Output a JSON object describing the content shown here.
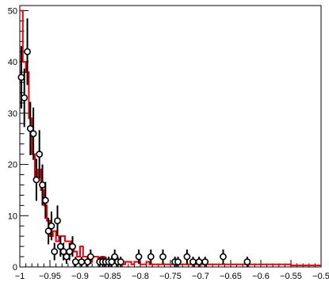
{
  "chart_data": {
    "type": "scatter",
    "title": "",
    "xlabel": "",
    "ylabel": "",
    "xlim": [
      -1,
      -0.5
    ],
    "ylim": [
      0,
      51
    ],
    "grid": false,
    "legend": "none",
    "xticks": [
      {
        "value": -1.0,
        "label": "−1"
      },
      {
        "value": -0.95,
        "label": "−0.95"
      },
      {
        "value": -0.9,
        "label": "−0.9"
      },
      {
        "value": -0.85,
        "label": "−0.85"
      },
      {
        "value": -0.8,
        "label": "−0.8"
      },
      {
        "value": -0.75,
        "label": "−0.75"
      },
      {
        "value": -0.7,
        "label": "−0.7"
      },
      {
        "value": -0.65,
        "label": "−0.65"
      },
      {
        "value": -0.6,
        "label": "−0.6"
      },
      {
        "value": -0.55,
        "label": "−0.55"
      },
      {
        "value": -0.5,
        "label": "−0.5"
      }
    ],
    "yticks": [
      {
        "value": 0,
        "label": "0"
      },
      {
        "value": 10,
        "label": "10"
      },
      {
        "value": 20,
        "label": "20"
      },
      {
        "value": 30,
        "label": "30"
      },
      {
        "value": 40,
        "label": "40"
      },
      {
        "value": 50,
        "label": "50"
      }
    ],
    "series": [
      {
        "style": "points-with-error-bars",
        "color": "#000000",
        "x": [
          -0.9975,
          -0.9925,
          -0.9875,
          -0.9825,
          -0.9775,
          -0.9725,
          -0.9675,
          -0.9625,
          -0.9575,
          -0.9525,
          -0.9475,
          -0.9425,
          -0.9375,
          -0.9325,
          -0.9275,
          -0.9225,
          -0.9175,
          -0.9125,
          -0.9075,
          -0.9025,
          -0.8975,
          -0.8925,
          -0.8875,
          -0.8825,
          -0.8775,
          -0.8725,
          -0.8675,
          -0.8625,
          -0.8575,
          -0.8525,
          -0.8475,
          -0.8425,
          -0.8375,
          -0.8325,
          -0.8275,
          -0.8225,
          -0.8175,
          -0.8125,
          -0.8075,
          -0.8025,
          -0.7975,
          -0.7925,
          -0.7875,
          -0.7825,
          -0.7775,
          -0.7725,
          -0.7675,
          -0.7625,
          -0.7575,
          -0.7525,
          -0.7475,
          -0.7425,
          -0.7375,
          -0.7325,
          -0.7275,
          -0.7225,
          -0.7175,
          -0.7125,
          -0.7075,
          -0.7025,
          -0.6975,
          -0.6925,
          -0.6875,
          -0.6825,
          -0.6775,
          -0.6725,
          -0.6675,
          -0.6625,
          -0.6575,
          -0.6525,
          -0.6475,
          -0.6425,
          -0.6375,
          -0.6325,
          -0.6275,
          -0.6225,
          -0.6175,
          -0.6125,
          -0.6075,
          -0.6025,
          -0.5975,
          -0.5925,
          -0.5875,
          -0.5825,
          -0.5775,
          -0.5725,
          -0.5675,
          -0.5625,
          -0.5575,
          -0.5525,
          -0.5475,
          -0.5425,
          -0.5375,
          -0.5325,
          -0.5275,
          -0.5225,
          -0.5175,
          -0.5125,
          -0.5075,
          -0.5025
        ],
        "y": [
          37,
          33,
          42,
          27,
          26,
          17,
          22,
          16,
          13,
          7,
          8,
          3,
          9,
          4,
          3,
          2,
          3,
          4,
          1,
          0,
          1,
          0,
          1,
          2,
          0,
          0,
          1,
          1,
          1,
          1,
          1,
          2,
          1,
          1,
          0,
          0,
          0,
          0,
          0,
          2,
          0,
          0,
          0,
          2,
          0,
          0,
          0,
          2,
          0,
          0,
          0,
          1,
          1,
          0,
          0,
          2,
          0,
          1,
          0,
          1,
          0,
          1,
          0,
          0,
          0,
          0,
          0,
          2,
          0,
          0,
          0,
          0,
          0,
          0,
          0,
          1,
          0,
          0,
          0,
          0,
          0,
          0,
          0,
          0,
          0,
          0,
          0,
          0,
          0,
          0,
          0,
          0,
          0,
          0,
          0,
          0,
          0,
          0,
          0,
          0
        ],
        "y_err": [
          6.1,
          5.7,
          6.5,
          5.2,
          5.1,
          4.1,
          4.7,
          4.0,
          3.6,
          2.6,
          2.8,
          1.7,
          3.0,
          2.0,
          1.7,
          1.4,
          1.7,
          2.0,
          1.0,
          0,
          1.0,
          0,
          1.0,
          1.4,
          0,
          0,
          1.0,
          1.0,
          1.0,
          1.0,
          1.0,
          1.4,
          1.0,
          1.0,
          0,
          0,
          0,
          0,
          0,
          1.4,
          0,
          0,
          0,
          1.4,
          0,
          0,
          0,
          1.4,
          0,
          0,
          0,
          1.0,
          1.0,
          0,
          0,
          1.4,
          0,
          1.0,
          0,
          1.0,
          0,
          1.0,
          0,
          0,
          0,
          0,
          0,
          1.4,
          0,
          0,
          0,
          0,
          0,
          0,
          0,
          1.0,
          0,
          0,
          0,
          0,
          0,
          0,
          0,
          0,
          0,
          0,
          0,
          0,
          0,
          0,
          0,
          0,
          0,
          0,
          0,
          0,
          0,
          0,
          0,
          0
        ]
      },
      {
        "style": "step-histogram",
        "color": "#e8000b",
        "bin_edges": [
          -1.0,
          -0.995,
          -0.99,
          -0.985,
          -0.98,
          -0.975,
          -0.97,
          -0.965,
          -0.96,
          -0.955,
          -0.95,
          -0.945,
          -0.94,
          -0.935,
          -0.93,
          -0.925,
          -0.92,
          -0.915,
          -0.91,
          -0.905,
          -0.9,
          -0.895,
          -0.89,
          -0.885,
          -0.88,
          -0.875,
          -0.87,
          -0.865,
          -0.86,
          -0.855,
          -0.85,
          -0.845,
          -0.84,
          -0.835,
          -0.83,
          -0.825,
          -0.82,
          -0.815,
          -0.81,
          -0.805,
          -0.8,
          -0.795,
          -0.79,
          -0.785,
          -0.78,
          -0.775,
          -0.77,
          -0.765,
          -0.76,
          -0.755,
          -0.75,
          -0.745,
          -0.74,
          -0.735,
          -0.73,
          -0.725,
          -0.72,
          -0.715,
          -0.71,
          -0.705,
          -0.7,
          -0.695,
          -0.69,
          -0.685,
          -0.68,
          -0.675,
          -0.67,
          -0.665,
          -0.66,
          -0.655,
          -0.65,
          -0.645,
          -0.64,
          -0.635,
          -0.63,
          -0.625,
          -0.62,
          -0.615,
          -0.61,
          -0.605,
          -0.6,
          -0.595,
          -0.59,
          -0.585,
          -0.58,
          -0.575,
          -0.57,
          -0.565,
          -0.56,
          -0.555,
          -0.55,
          -0.545,
          -0.54,
          -0.535,
          -0.53,
          -0.525,
          -0.52,
          -0.515,
          -0.51,
          -0.505,
          -0.5
        ],
        "values": [
          50,
          40,
          38,
          29,
          22,
          17,
          19,
          15,
          12,
          9,
          6,
          7,
          5,
          6,
          6,
          5,
          5,
          4,
          3,
          2,
          4,
          2,
          2,
          1,
          2,
          2,
          1,
          2,
          1,
          1,
          1,
          1,
          1,
          1,
          0.5,
          1,
          1,
          0.5,
          1,
          1,
          0.5,
          0.5,
          1,
          0.5,
          0.5,
          0.5,
          0.5,
          0.5,
          0.5,
          0.5,
          0.5,
          0.5,
          0.5,
          0.5,
          0.5,
          0.5,
          0.5,
          0.5,
          0.5,
          0.5,
          0.5,
          0.5,
          0.5,
          0.5,
          0.5,
          0.5,
          0.5,
          0.5,
          0.5,
          0.5,
          0.5,
          0.5,
          0.5,
          0.5,
          0.5,
          0.5,
          0.5,
          0.5,
          0.5,
          0.5,
          0.5,
          0.5,
          0.5,
          0.5,
          0.5,
          0.5,
          0.5,
          0.5,
          0.5,
          0.5,
          0.3,
          0.3,
          0.3,
          0.3,
          0.3,
          0.3,
          0.3,
          0.3,
          0.3,
          0.3
        ]
      }
    ]
  }
}
